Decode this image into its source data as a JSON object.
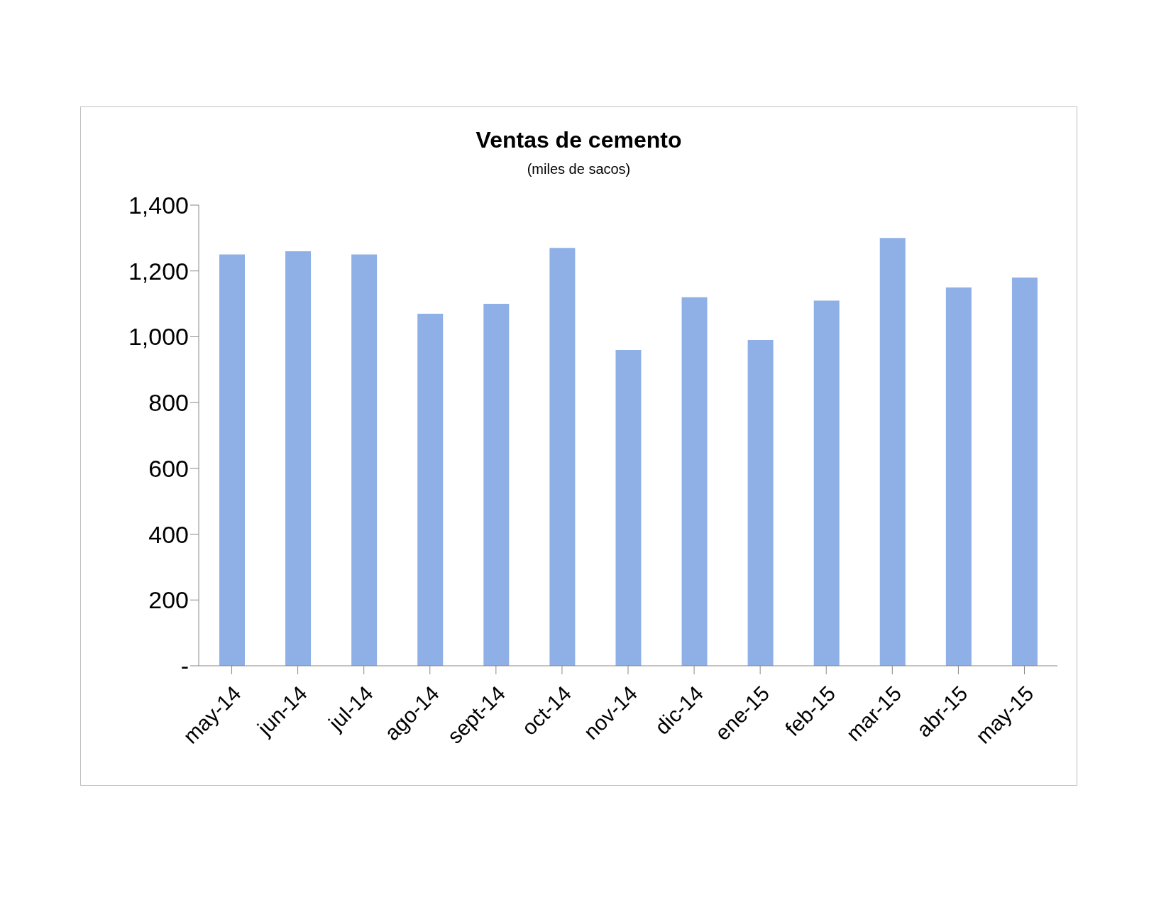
{
  "chart_data": {
    "type": "bar",
    "title": "Ventas de cemento",
    "subtitle": "(miles de sacos)",
    "categories": [
      "may-14",
      "jun-14",
      "jul-14",
      "ago-14",
      "sept-14",
      "oct-14",
      "nov-14",
      "dic-14",
      "ene-15",
      "feb-15",
      "mar-15",
      "abr-15",
      "may-15"
    ],
    "values": [
      1250,
      1260,
      1250,
      1070,
      1100,
      1270,
      960,
      1120,
      990,
      1110,
      1300,
      1150,
      1180
    ],
    "color": "#8fb0e6",
    "ylim": [
      0,
      1400
    ],
    "yticks": [
      {
        "value": 0,
        "label": "-"
      },
      {
        "value": 200,
        "label": "200"
      },
      {
        "value": 400,
        "label": "400"
      },
      {
        "value": 600,
        "label": "600"
      },
      {
        "value": 800,
        "label": "800"
      },
      {
        "value": 1000,
        "label": "1,000"
      },
      {
        "value": 1200,
        "label": "1,200"
      },
      {
        "value": 1400,
        "label": "1,400"
      }
    ],
    "grid": false,
    "legend": false
  }
}
